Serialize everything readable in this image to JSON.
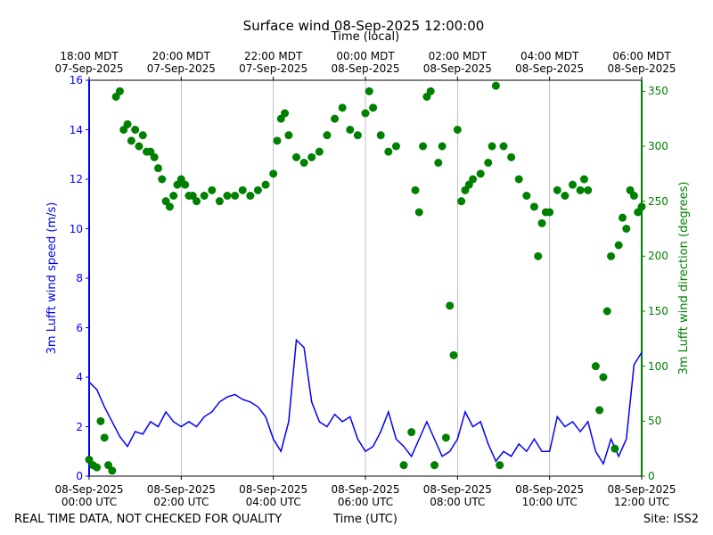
{
  "chart_data": {
    "type": "line-scatter",
    "title": "Surface wind 08-Sep-2025 12:00:00",
    "x2_label": "Time (local)",
    "x_label": "Time (UTC)",
    "y_label": "3m Lufft wind speed (m/s)",
    "y2_label": "3m Lufft wind direction (degrees)",
    "footer_left": "REAL TIME DATA, NOT CHECKED FOR QUALITY",
    "footer_right": "Site: ISS2",
    "grid": "x",
    "xlim": [
      "2025-09-08T00:00",
      "2025-09-08T12:00"
    ],
    "xticks": [
      {
        "value": "2025-09-08T00:00",
        "label": "08-Sep-2025\n00:00 UTC"
      },
      {
        "value": "2025-09-08T02:00",
        "label": "08-Sep-2025\n02:00 UTC"
      },
      {
        "value": "2025-09-08T04:00",
        "label": "08-Sep-2025\n04:00 UTC"
      },
      {
        "value": "2025-09-08T06:00",
        "label": "08-Sep-2025\n06:00 UTC"
      },
      {
        "value": "2025-09-08T08:00",
        "label": "08-Sep-2025\n08:00 UTC"
      },
      {
        "value": "2025-09-08T10:00",
        "label": "08-Sep-2025\n10:00 UTC"
      },
      {
        "value": "2025-09-08T12:00",
        "label": "08-Sep-2025\n12:00 UTC"
      }
    ],
    "x2ticks": [
      {
        "value": "2025-09-08T00:00",
        "label": "18:00 MDT\n07-Sep-2025"
      },
      {
        "value": "2025-09-08T02:00",
        "label": "20:00 MDT\n07-Sep-2025"
      },
      {
        "value": "2025-09-08T04:00",
        "label": "22:00 MDT\n07-Sep-2025"
      },
      {
        "value": "2025-09-08T06:00",
        "label": "00:00 MDT\n08-Sep-2025"
      },
      {
        "value": "2025-09-08T08:00",
        "label": "02:00 MDT\n08-Sep-2025"
      },
      {
        "value": "2025-09-08T10:00",
        "label": "04:00 MDT\n08-Sep-2025"
      },
      {
        "value": "2025-09-08T12:00",
        "label": "06:00 MDT\n08-Sep-2025"
      }
    ],
    "ylim": [
      0,
      16
    ],
    "yticks": [
      0,
      2,
      4,
      6,
      8,
      10,
      12,
      14,
      16
    ],
    "y_color": "#0000ff",
    "y2lim": [
      0,
      360
    ],
    "y2ticks": [
      0,
      50,
      100,
      150,
      200,
      250,
      300,
      350
    ],
    "y2_color": "#008000",
    "series": [
      {
        "kind": "line",
        "color": "#0000ff",
        "x": [
          "2025-09-08T00:00",
          "2025-09-08T00:10",
          "2025-09-08T00:20",
          "2025-09-08T00:30",
          "2025-09-08T00:40",
          "2025-09-08T00:50",
          "2025-09-08T01:00",
          "2025-09-08T01:10",
          "2025-09-08T01:20",
          "2025-09-08T01:30",
          "2025-09-08T01:40",
          "2025-09-08T01:50",
          "2025-09-08T02:00",
          "2025-09-08T02:10",
          "2025-09-08T02:20",
          "2025-09-08T02:30",
          "2025-09-08T02:40",
          "2025-09-08T02:50",
          "2025-09-08T03:00",
          "2025-09-08T03:10",
          "2025-09-08T03:20",
          "2025-09-08T03:30",
          "2025-09-08T03:40",
          "2025-09-08T03:50",
          "2025-09-08T04:00",
          "2025-09-08T04:10",
          "2025-09-08T04:20",
          "2025-09-08T04:30",
          "2025-09-08T04:40",
          "2025-09-08T04:50",
          "2025-09-08T05:00",
          "2025-09-08T05:10",
          "2025-09-08T05:20",
          "2025-09-08T05:30",
          "2025-09-08T05:40",
          "2025-09-08T05:50",
          "2025-09-08T06:00",
          "2025-09-08T06:10",
          "2025-09-08T06:20",
          "2025-09-08T06:30",
          "2025-09-08T06:40",
          "2025-09-08T06:50",
          "2025-09-08T07:00",
          "2025-09-08T07:10",
          "2025-09-08T07:20",
          "2025-09-08T07:30",
          "2025-09-08T07:40",
          "2025-09-08T07:50",
          "2025-09-08T08:00",
          "2025-09-08T08:10",
          "2025-09-08T08:20",
          "2025-09-08T08:30",
          "2025-09-08T08:40",
          "2025-09-08T08:50",
          "2025-09-08T09:00",
          "2025-09-08T09:10",
          "2025-09-08T09:20",
          "2025-09-08T09:30",
          "2025-09-08T09:40",
          "2025-09-08T09:50",
          "2025-09-08T10:00",
          "2025-09-08T10:10",
          "2025-09-08T10:20",
          "2025-09-08T10:30",
          "2025-09-08T10:40",
          "2025-09-08T10:50",
          "2025-09-08T11:00",
          "2025-09-08T11:10",
          "2025-09-08T11:20",
          "2025-09-08T11:30",
          "2025-09-08T11:40",
          "2025-09-08T11:50",
          "2025-09-08T12:00"
        ],
        "values": [
          3.8,
          3.5,
          2.8,
          2.2,
          1.6,
          1.2,
          1.8,
          1.7,
          2.2,
          2.0,
          2.6,
          2.2,
          2.0,
          2.2,
          2.0,
          2.4,
          2.6,
          3.0,
          3.2,
          3.3,
          3.1,
          3.0,
          2.8,
          2.4,
          1.5,
          1.0,
          2.2,
          5.5,
          5.2,
          3.0,
          2.2,
          2.0,
          2.5,
          2.2,
          2.4,
          1.5,
          1.0,
          1.2,
          1.8,
          2.6,
          1.5,
          1.2,
          0.8,
          1.5,
          2.2,
          1.5,
          0.8,
          1.0,
          1.5,
          2.6,
          2.0,
          2.2,
          1.3,
          0.6,
          1.0,
          0.8,
          1.3,
          1.0,
          1.5,
          1.0,
          1.0,
          2.4,
          2.0,
          2.2,
          1.8,
          2.2,
          1.0,
          0.5,
          1.5,
          0.8,
          1.5,
          4.5,
          5.0
        ]
      },
      {
        "kind": "scatter",
        "axis": "y2",
        "color": "#008000",
        "x": [
          "2025-09-08T00:00",
          "2025-09-08T00:05",
          "2025-09-08T00:10",
          "2025-09-08T00:15",
          "2025-09-08T00:20",
          "2025-09-08T00:25",
          "2025-09-08T00:30",
          "2025-09-08T00:35",
          "2025-09-08T00:40",
          "2025-09-08T00:45",
          "2025-09-08T00:50",
          "2025-09-08T00:55",
          "2025-09-08T01:00",
          "2025-09-08T01:05",
          "2025-09-08T01:10",
          "2025-09-08T01:15",
          "2025-09-08T01:20",
          "2025-09-08T01:25",
          "2025-09-08T01:30",
          "2025-09-08T01:35",
          "2025-09-08T01:40",
          "2025-09-08T01:45",
          "2025-09-08T01:50",
          "2025-09-08T01:55",
          "2025-09-08T02:00",
          "2025-09-08T02:05",
          "2025-09-08T02:10",
          "2025-09-08T02:15",
          "2025-09-08T02:20",
          "2025-09-08T02:30",
          "2025-09-08T02:40",
          "2025-09-08T02:50",
          "2025-09-08T03:00",
          "2025-09-08T03:10",
          "2025-09-08T03:20",
          "2025-09-08T03:30",
          "2025-09-08T03:40",
          "2025-09-08T03:50",
          "2025-09-08T04:00",
          "2025-09-08T04:05",
          "2025-09-08T04:10",
          "2025-09-08T04:15",
          "2025-09-08T04:20",
          "2025-09-08T04:30",
          "2025-09-08T04:40",
          "2025-09-08T04:50",
          "2025-09-08T05:00",
          "2025-09-08T05:10",
          "2025-09-08T05:20",
          "2025-09-08T05:30",
          "2025-09-08T05:40",
          "2025-09-08T05:50",
          "2025-09-08T06:00",
          "2025-09-08T06:05",
          "2025-09-08T06:10",
          "2025-09-08T06:20",
          "2025-09-08T06:30",
          "2025-09-08T06:40",
          "2025-09-08T06:50",
          "2025-09-08T07:00",
          "2025-09-08T07:05",
          "2025-09-08T07:10",
          "2025-09-08T07:15",
          "2025-09-08T07:20",
          "2025-09-08T07:25",
          "2025-09-08T07:30",
          "2025-09-08T07:35",
          "2025-09-08T07:40",
          "2025-09-08T07:45",
          "2025-09-08T07:50",
          "2025-09-08T07:55",
          "2025-09-08T08:00",
          "2025-09-08T08:05",
          "2025-09-08T08:10",
          "2025-09-08T08:15",
          "2025-09-08T08:20",
          "2025-09-08T08:30",
          "2025-09-08T08:40",
          "2025-09-08T08:45",
          "2025-09-08T08:50",
          "2025-09-08T08:55",
          "2025-09-08T09:00",
          "2025-09-08T09:10",
          "2025-09-08T09:20",
          "2025-09-08T09:30",
          "2025-09-08T09:40",
          "2025-09-08T09:45",
          "2025-09-08T09:50",
          "2025-09-08T09:55",
          "2025-09-08T10:00",
          "2025-09-08T10:10",
          "2025-09-08T10:20",
          "2025-09-08T10:30",
          "2025-09-08T10:40",
          "2025-09-08T10:45",
          "2025-09-08T10:50",
          "2025-09-08T11:00",
          "2025-09-08T11:05",
          "2025-09-08T11:10",
          "2025-09-08T11:15",
          "2025-09-08T11:20",
          "2025-09-08T11:25",
          "2025-09-08T11:30",
          "2025-09-08T11:35",
          "2025-09-08T11:40",
          "2025-09-08T11:45",
          "2025-09-08T11:50",
          "2025-09-08T11:55",
          "2025-09-08T12:00"
        ],
        "values": [
          15,
          10,
          8,
          50,
          35,
          10,
          5,
          345,
          350,
          315,
          320,
          305,
          315,
          300,
          310,
          295,
          295,
          290,
          280,
          270,
          250,
          245,
          255,
          265,
          270,
          265,
          255,
          255,
          250,
          255,
          260,
          250,
          255,
          255,
          260,
          255,
          260,
          265,
          275,
          305,
          325,
          330,
          310,
          290,
          285,
          290,
          295,
          310,
          325,
          335,
          315,
          310,
          330,
          350,
          335,
          310,
          295,
          300,
          10,
          40,
          260,
          240,
          300,
          345,
          350,
          10,
          285,
          300,
          35,
          155,
          110,
          315,
          250,
          260,
          265,
          270,
          275,
          285,
          300,
          355,
          10,
          300,
          290,
          270,
          255,
          245,
          200,
          230,
          240,
          240,
          260,
          255,
          265,
          260,
          270,
          260,
          100,
          60,
          90,
          150,
          200,
          25,
          210,
          235,
          225,
          260,
          255,
          240,
          245
        ]
      }
    ]
  }
}
